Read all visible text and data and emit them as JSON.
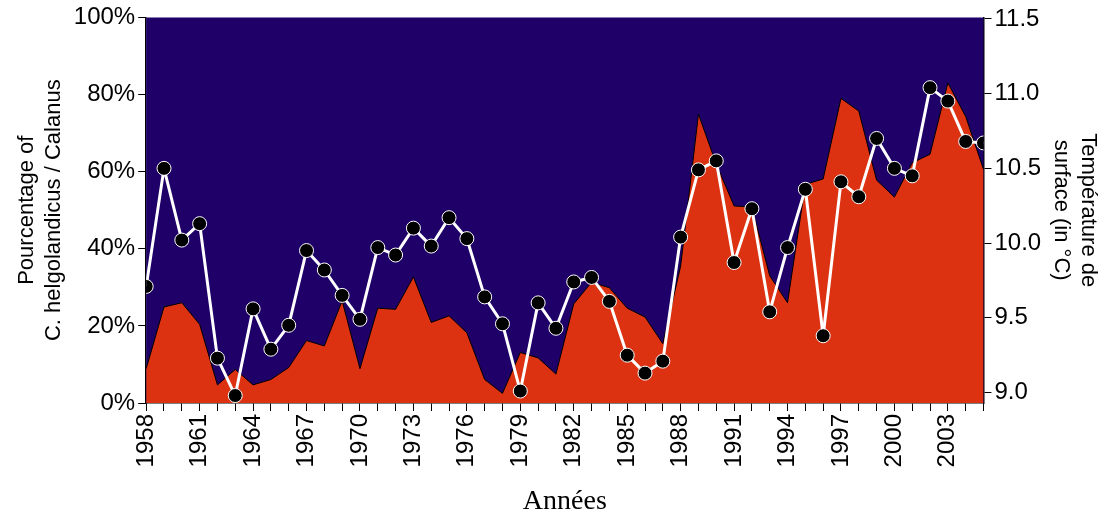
{
  "chart_data": {
    "type": "area",
    "xlabel": "Années",
    "ylabel": "Pourcentage of\nC. helgolandicus / Calanus",
    "y2label": "Température de\nsurface (in °C)",
    "x": [
      1958,
      1959,
      1960,
      1961,
      1962,
      1963,
      1964,
      1965,
      1966,
      1967,
      1968,
      1969,
      1970,
      1971,
      1972,
      1973,
      1974,
      1975,
      1976,
      1977,
      1978,
      1979,
      1980,
      1981,
      1982,
      1983,
      1984,
      1985,
      1986,
      1987,
      1988,
      1989,
      1990,
      1991,
      1992,
      1993,
      1994,
      1995,
      1996,
      1997,
      1998,
      1999,
      2000,
      2001,
      2002,
      2003,
      2004,
      2005
    ],
    "series": [
      {
        "color": "#dc3212",
        "values": [
          8.9,
          24.9,
          26,
          20.4,
          4.7,
          8.7,
          4.7,
          6.1,
          9.2,
          16.2,
          14.8,
          26.5,
          8.9,
          24.6,
          24.3,
          32.7,
          20.9,
          22.6,
          18.2,
          6.1,
          2.5,
          13.1,
          11.7,
          7.5,
          25.7,
          31.3,
          29.9,
          24.6,
          22.3,
          15.4,
          35.5,
          74.9,
          62,
          51.1,
          50.8,
          33,
          26,
          56.7,
          58.1,
          79,
          75.7,
          57.8,
          53.4,
          62.3,
          64.5,
          83,
          74.3,
          60.6
        ]
      },
      {
        "type": "line",
        "axis": "y2",
        "color": "#ffffff",
        "marker": "circle",
        "values": [
          9.71,
          10.5,
          10.02,
          10.13,
          9.23,
          8.98,
          9.56,
          9.29,
          9.45,
          9.95,
          9.82,
          9.65,
          9.49,
          9.97,
          9.92,
          10.1,
          9.98,
          10.17,
          10.03,
          9.64,
          9.46,
          9.01,
          9.6,
          9.43,
          9.74,
          9.77,
          9.61,
          9.25,
          9.13,
          9.21,
          10.04,
          10.49,
          10.55,
          9.87,
          10.23,
          9.54,
          9.97,
          10.36,
          9.38,
          10.41,
          10.31,
          10.7,
          10.5,
          10.45,
          11.04,
          10.95,
          10.68,
          10.67
        ]
      }
    ],
    "xlim": [
      1958,
      2005
    ],
    "xticks": [
      1958,
      {
        "value": 1959,
        "label": null
      },
      {
        "value": 1960,
        "label": null
      },
      1961,
      {
        "value": 1962,
        "label": null
      },
      {
        "value": 1963,
        "label": null
      },
      1964,
      {
        "value": 1965,
        "label": null
      },
      {
        "value": 1966,
        "label": null
      },
      1967,
      {
        "value": 1968,
        "label": null
      },
      {
        "value": 1969,
        "label": null
      },
      1970,
      {
        "value": 1971,
        "label": null
      },
      {
        "value": 1972,
        "label": null
      },
      1973,
      {
        "value": 1974,
        "label": null
      },
      {
        "value": 1975,
        "label": null
      },
      1976,
      {
        "value": 1977,
        "label": null
      },
      {
        "value": 1978,
        "label": null
      },
      1979,
      {
        "value": 1980,
        "label": null
      },
      {
        "value": 1981,
        "label": null
      },
      1982,
      {
        "value": 1983,
        "label": null
      },
      {
        "value": 1984,
        "label": null
      },
      1985,
      {
        "value": 1986,
        "label": null
      },
      {
        "value": 1987,
        "label": null
      },
      1988,
      {
        "value": 1989,
        "label": null
      },
      {
        "value": 1990,
        "label": null
      },
      1991,
      {
        "value": 1992,
        "label": null
      },
      {
        "value": 1993,
        "label": null
      },
      1994,
      {
        "value": 1995,
        "label": null
      },
      {
        "value": 1996,
        "label": null
      },
      1997,
      {
        "value": 1998,
        "label": null
      },
      {
        "value": 1999,
        "label": null
      },
      2000,
      {
        "value": 2001,
        "label": null
      },
      {
        "value": 2002,
        "label": null
      },
      2003,
      {
        "value": 2004,
        "label": null
      },
      {
        "value": 2005,
        "label": null
      }
    ],
    "ylim": [
      0,
      100
    ],
    "yticks": [
      {
        "value": 0,
        "label": "0%"
      },
      {
        "value": 20,
        "label": "20%"
      },
      {
        "value": 40,
        "label": "40%"
      },
      {
        "value": 60,
        "label": "60%"
      },
      {
        "value": 80,
        "label": "80%"
      },
      {
        "value": 100,
        "label": "100%"
      }
    ],
    "y2lim": [
      8.93,
      11.51
    ],
    "y2ticks": [
      {
        "value": 9,
        "label": "9.0"
      },
      {
        "value": 9.5,
        "label": "9.5"
      },
      {
        "value": 10,
        "label": "10.0"
      },
      {
        "value": 10.5,
        "label": "10.5"
      },
      {
        "value": 11,
        "label": "11.0"
      },
      {
        "value": 11.5,
        "label": "11.5"
      }
    ],
    "grid": false,
    "legend": false
  }
}
